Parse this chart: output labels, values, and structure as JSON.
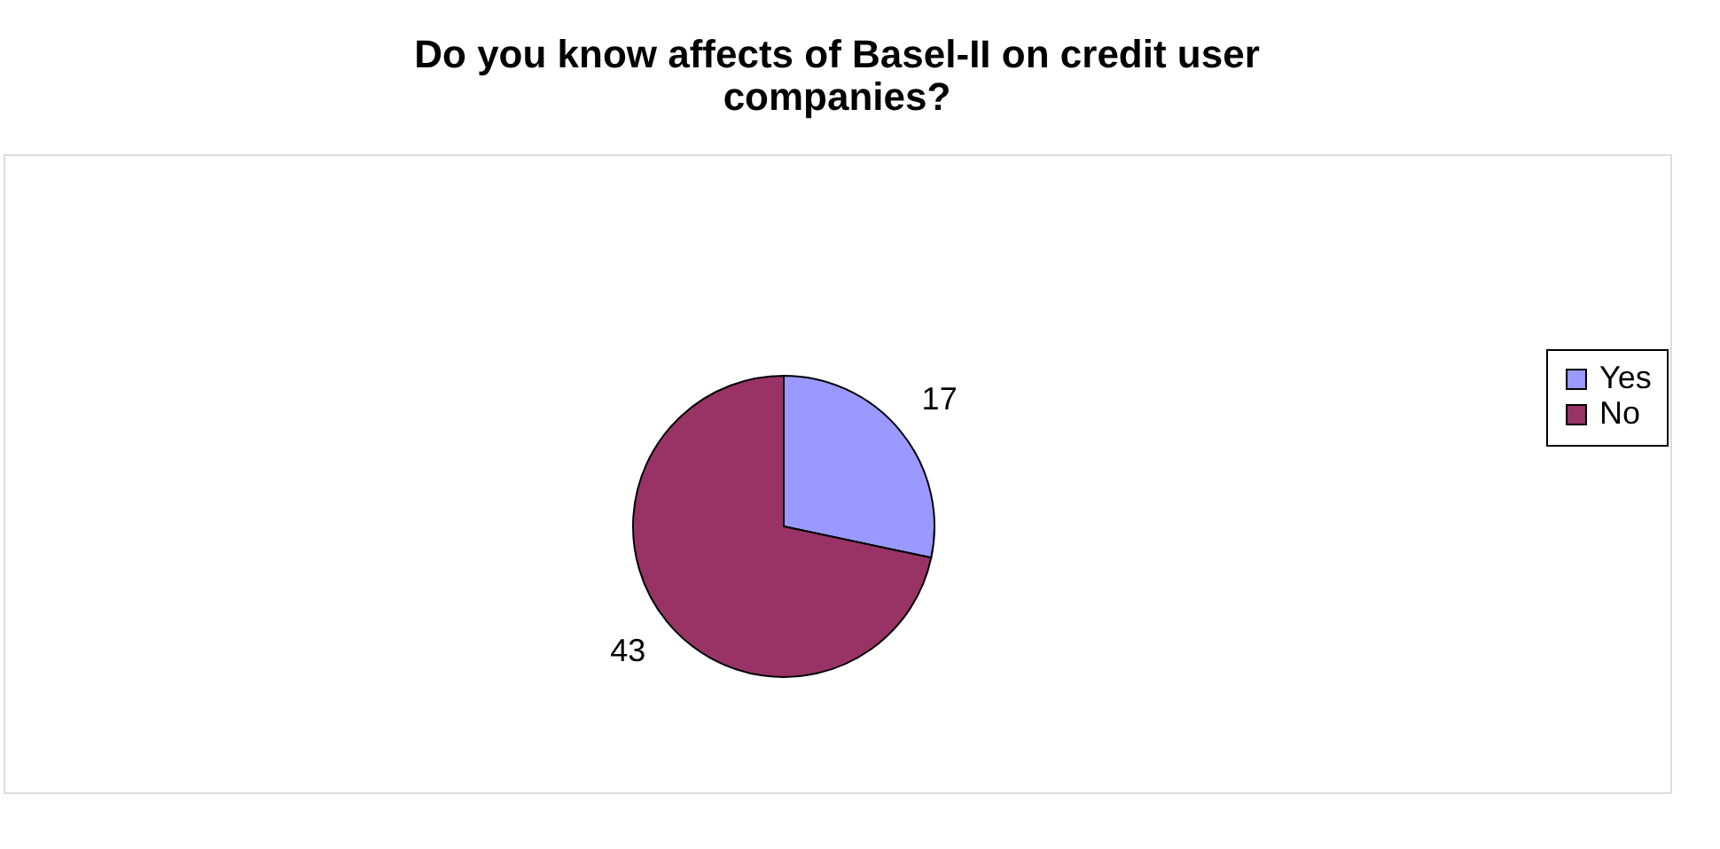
{
  "chart_data": {
    "type": "pie",
    "title": "Do you know affects of Basel-II on credit user companies?",
    "categories": [
      "Yes",
      "No"
    ],
    "values": [
      17,
      43
    ],
    "colors": [
      "#9999ff",
      "#993366"
    ],
    "data_labels": true,
    "legend": "right"
  }
}
